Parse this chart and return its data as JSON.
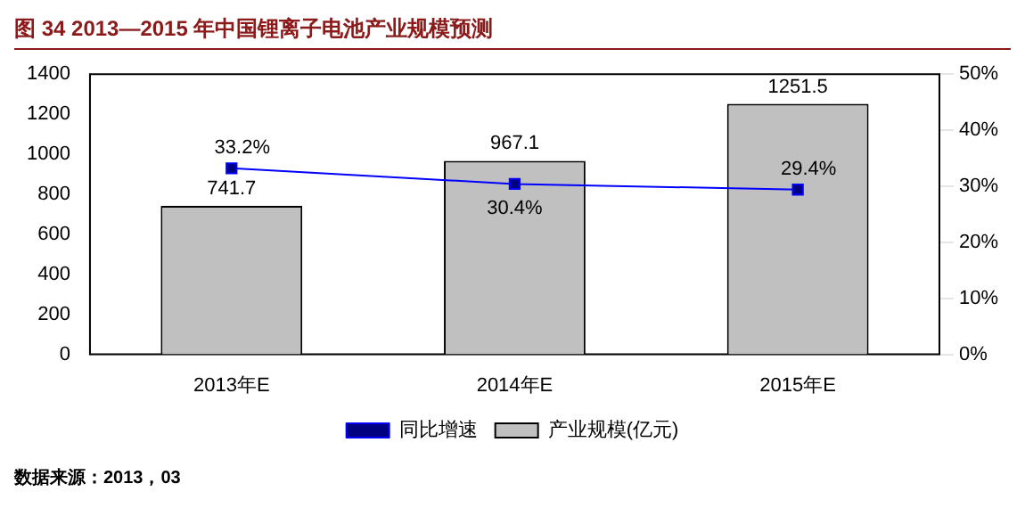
{
  "chart_data": {
    "type": "bar",
    "title": "图 34 2013—2015 年中国锂离子电池产业规模预测",
    "categories": [
      "2013年E",
      "2014年E",
      "2015年E"
    ],
    "series": [
      {
        "name": "产业规模(亿元)",
        "color": "#c0c0c0",
        "values": [
          741.7,
          967.1,
          1251.5
        ],
        "value_labels": [
          "741.7",
          "967.1",
          "1251.5"
        ]
      },
      {
        "name": "同比增速",
        "type": "line",
        "axis": "y2",
        "color": "#0000ff",
        "marker": "square",
        "values": [
          33.2,
          30.4,
          29.4
        ],
        "value_labels": [
          "33.2%",
          "30.4%",
          "29.4%"
        ]
      }
    ],
    "ylim": [
      0,
      1400
    ],
    "yticks": [
      0,
      200,
      400,
      600,
      800,
      1000,
      1200,
      1400
    ],
    "y2lim": [
      0,
      50
    ],
    "y2ticks": [
      {
        "value": 0,
        "label": "0%"
      },
      {
        "value": 10,
        "label": "10%"
      },
      {
        "value": 20,
        "label": "20%"
      },
      {
        "value": 30,
        "label": "30%"
      },
      {
        "value": 40,
        "label": "40%"
      },
      {
        "value": 50,
        "label": "50%"
      }
    ],
    "legend": "bottom",
    "grid": false,
    "annotations": [
      "数据来源：2013，03"
    ]
  }
}
